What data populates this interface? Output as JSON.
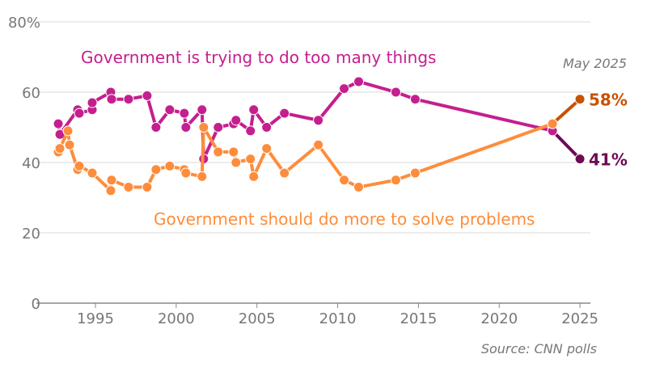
{
  "chart_data": {
    "type": "line",
    "xlim": [
      1992,
      2025
    ],
    "ylim": [
      0,
      80
    ],
    "x_ticks": [
      "1995",
      "2000",
      "2005",
      "2010",
      "2015",
      "2020",
      "2025"
    ],
    "y_ticks": [
      "0",
      "20",
      "40",
      "60",
      "80%"
    ],
    "grid": true,
    "date_label": "May 2025",
    "source": "Source: CNN polls",
    "series": [
      {
        "name": "Government is trying to do too many things",
        "color": "#c41f8e",
        "end_color": "#6e0b52",
        "end_label": "41%",
        "x": [
          1992.7,
          1992.8,
          1993.9,
          1994.0,
          1994.8,
          1994.8,
          1995.95,
          1996.0,
          1997.05,
          1998.2,
          1998.75,
          1999.6,
          2000.5,
          2000.6,
          2001.6,
          2001.7,
          2002.6,
          2003.55,
          2003.7,
          2004.6,
          2004.8,
          2005.6,
          2006.7,
          2008.8,
          2010.4,
          2011.3,
          2013.6,
          2014.8,
          2023.3,
          2025.0
        ],
        "y": [
          51,
          48,
          55,
          54,
          55,
          57,
          60,
          58,
          58,
          59,
          50,
          55,
          54,
          50,
          55,
          41,
          50,
          51,
          52,
          49,
          55,
          50,
          54,
          52,
          61,
          63,
          60,
          58,
          49,
          41
        ]
      },
      {
        "name": "Government should do more to solve problems",
        "color": "#fd8d3c",
        "end_color": "#c85200",
        "end_label": "58%",
        "x": [
          1992.7,
          1992.8,
          1993.3,
          1993.4,
          1993.9,
          1994.0,
          1994.8,
          1995.95,
          1996.0,
          1997.05,
          1998.2,
          1998.75,
          1999.6,
          2000.5,
          2000.6,
          2001.6,
          2001.7,
          2002.6,
          2003.55,
          2003.7,
          2004.6,
          2004.8,
          2005.6,
          2006.7,
          2008.8,
          2010.4,
          2011.3,
          2013.6,
          2014.8,
          2023.3,
          2025.0
        ],
        "y": [
          43,
          44,
          49,
          45,
          38,
          39,
          37,
          32,
          35,
          33,
          33,
          38,
          39,
          38,
          37,
          36,
          50,
          43,
          43,
          40,
          41,
          36,
          44,
          37,
          45,
          35,
          33,
          35,
          37,
          51,
          58
        ]
      }
    ]
  }
}
